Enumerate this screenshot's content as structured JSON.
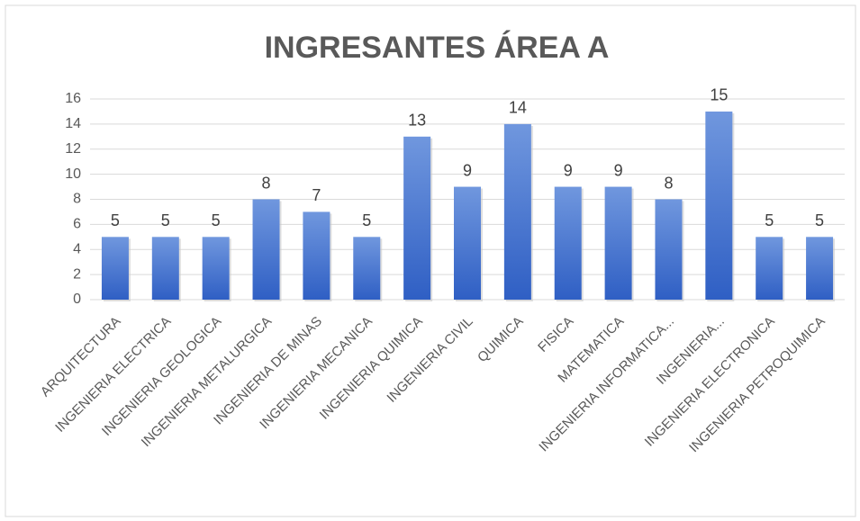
{
  "chart_data": {
    "type": "bar",
    "title": "INGRESANTES ÁREA A",
    "categories": [
      "ARQUITECTURA",
      "INGENIERIA ELECTRICA",
      "INGENIERIA GEOLOGICA",
      "INGENIERIA METALURGICA",
      "INGENIERIA DE MINAS",
      "INGENIERIA MECANICA",
      "INGENIERIA QUIMICA",
      "INGENIERIA CIVIL",
      "QUIMICA",
      "FISICA",
      "MATEMATICA",
      "INGENIERIA INFORMATICA...",
      "INGENIERIA...",
      "INGENIERIA ELECTRONICA",
      "INGENIERIA PETROQUIMICA"
    ],
    "values": [
      5,
      5,
      5,
      8,
      7,
      5,
      13,
      9,
      14,
      9,
      9,
      8,
      15,
      5,
      5
    ],
    "color": "#4472c4",
    "ylim": [
      0,
      16
    ],
    "yticks": [
      0,
      2,
      4,
      6,
      8,
      10,
      12,
      14,
      16
    ],
    "grid": true
  }
}
